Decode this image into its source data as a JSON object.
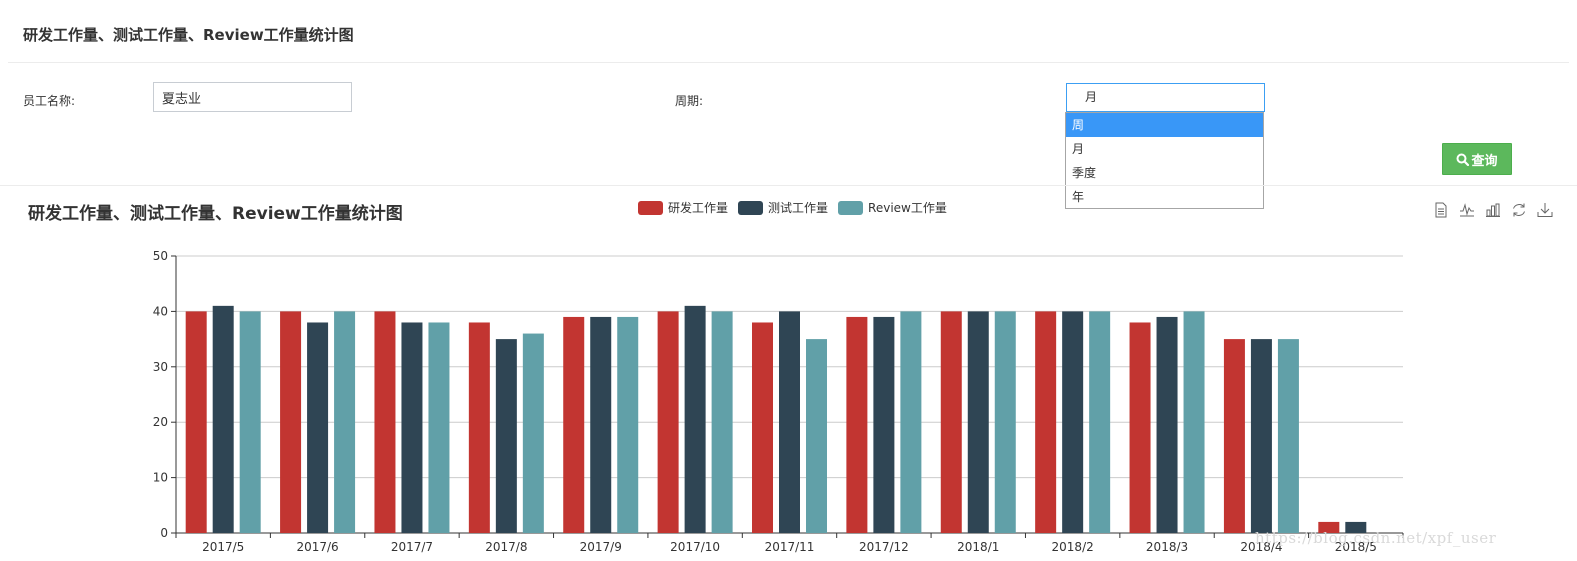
{
  "panel": {
    "title": "研发工作量、测试工作量、Review工作量统计图"
  },
  "form": {
    "employee_label": "员工名称:",
    "employee_value": "夏志业",
    "period_label": "周期:",
    "period_selected": "月",
    "period_options": [
      "周",
      "月",
      "季度",
      "年"
    ],
    "period_highlighted": "周",
    "query_label": "查询"
  },
  "toolbox": {
    "icons": [
      "data-view-icon",
      "line-chart-icon",
      "bar-chart-icon",
      "restore-icon",
      "download-icon"
    ]
  },
  "watermark": "https://blog.csdn.net/xpf_user",
  "colors": {
    "dev": "#c23531",
    "test": "#2f4554",
    "review": "#61a0a8",
    "button": "#5cb85c",
    "highlight": "#3997f7"
  },
  "chart_data": {
    "type": "bar",
    "title": "研发工作量、测试工作量、Review工作量统计图",
    "categories": [
      "2017/5",
      "2017/6",
      "2017/7",
      "2017/8",
      "2017/9",
      "2017/10",
      "2017/11",
      "2017/12",
      "2018/1",
      "2018/2",
      "2018/3",
      "2018/4",
      "2018/5"
    ],
    "series": [
      {
        "name": "研发工作量",
        "color": "#c23531",
        "values": [
          40,
          40,
          40,
          38,
          39,
          40,
          38,
          39,
          40,
          40,
          38,
          35,
          2
        ]
      },
      {
        "name": "测试工作量",
        "color": "#2f4554",
        "values": [
          41,
          38,
          38,
          35,
          39,
          41,
          40,
          39,
          40,
          40,
          39,
          35,
          2
        ]
      },
      {
        "name": "Review工作量",
        "color": "#61a0a8",
        "values": [
          40,
          40,
          38,
          36,
          39,
          40,
          35,
          40,
          40,
          40,
          40,
          35,
          0
        ]
      }
    ],
    "ylim": [
      0,
      50
    ],
    "yticks": [
      0,
      10,
      20,
      30,
      40,
      50
    ],
    "grid": true,
    "legend": "top-center"
  }
}
